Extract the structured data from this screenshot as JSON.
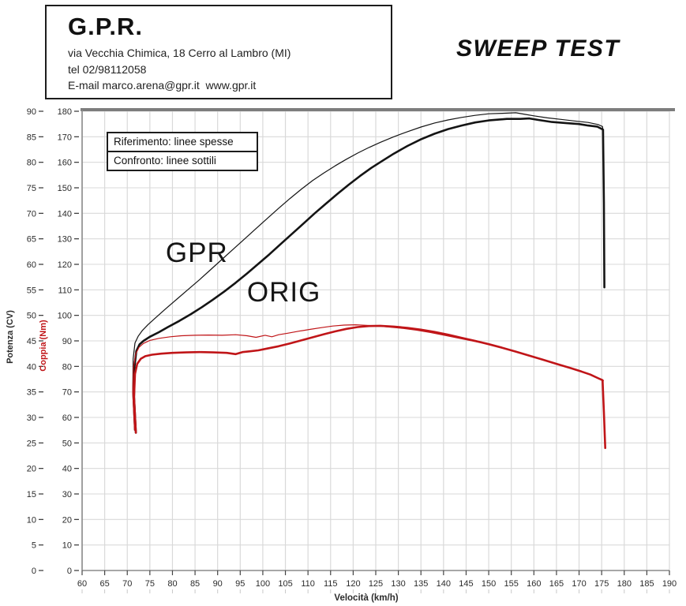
{
  "header": {
    "company": "G.P.R.",
    "address": "via Vecchia Chimica, 18 Cerro al Lambro (MI)",
    "phone": "tel 02/98112058",
    "email_line": "E-mail marco.arena@gpr.it  www.gpr.it"
  },
  "title": "SWEEP TEST",
  "legend": {
    "reference": "Riferimento: linee spesse",
    "comparison": "Confronto: linee sottili"
  },
  "colors": {
    "power_line": "#141414",
    "torque_line": "#c01518",
    "grid": "#d9d9d9",
    "frame_top": "#7d7d7d",
    "frame": "#8a8a8a",
    "tick_text": "#2b2b2b",
    "torque_axis_label": "#c01518"
  },
  "chart_data": {
    "type": "line",
    "title": "SWEEP TEST",
    "xlabel": "Velocità (km/h)",
    "grid": true,
    "legend_position": "top-left box",
    "x_axis": {
      "range": [
        60,
        190
      ],
      "step": 5,
      "ticks": [
        60,
        65,
        70,
        75,
        80,
        85,
        90,
        95,
        100,
        105,
        110,
        115,
        120,
        125,
        130,
        135,
        140,
        145,
        150,
        155,
        160,
        165,
        170,
        175,
        180,
        185,
        190
      ]
    },
    "y_axis_power": {
      "label": "Potenza (CV)",
      "range": [
        0,
        90
      ],
      "step": 5,
      "ticks": [
        0,
        5,
        10,
        15,
        20,
        25,
        30,
        35,
        40,
        45,
        50,
        55,
        60,
        65,
        70,
        75,
        80,
        85,
        90
      ]
    },
    "y_axis_torque": {
      "label": "Coppia (Nm)",
      "range": [
        0,
        180
      ],
      "step": 10,
      "ticks": [
        0,
        10,
        20,
        30,
        40,
        50,
        60,
        70,
        80,
        90,
        100,
        110,
        120,
        130,
        140,
        150,
        160,
        170,
        180
      ]
    },
    "annotations": [
      {
        "text": "GPR",
        "x_kmh": 78.5,
        "y_cv": 65.2
      },
      {
        "text": "ORIG",
        "x_kmh": 96.5,
        "y_cv": 57.5
      }
    ],
    "series": [
      {
        "name": "ORIG power - riferimento (thick)",
        "slug": "power-orig-thick",
        "axis": "power",
        "style": "thick",
        "color": "#141414",
        "x": [
          71.9,
          71.5,
          71.6,
          72.0,
          72.7,
          73.6,
          75,
          77,
          79,
          81.5,
          84,
          86.5,
          89,
          91.5,
          94,
          96.5,
          99,
          101.5,
          104,
          106.5,
          109,
          111.5,
          114,
          116.5,
          119,
          121.5,
          124,
          126.5,
          129,
          132,
          135,
          138,
          141,
          144,
          147,
          150,
          154,
          157,
          159,
          161,
          164,
          167,
          170,
          172,
          174,
          175.3,
          175.5,
          175.6
        ],
        "y": [
          27,
          34,
          40,
          43,
          44.3,
          45,
          45.8,
          46.7,
          47.7,
          48.9,
          50.2,
          51.6,
          53.1,
          54.7,
          56.4,
          58.2,
          60.1,
          62,
          64,
          66,
          68,
          70,
          71.9,
          73.8,
          75.6,
          77.3,
          78.9,
          80.3,
          81.7,
          83.2,
          84.5,
          85.6,
          86.5,
          87.2,
          87.8,
          88.2,
          88.5,
          88.5,
          88.6,
          88.3,
          87.9,
          87.7,
          87.5,
          87.2,
          87,
          86.4,
          72,
          55.5
        ]
      },
      {
        "name": "GPR power - confronto (thin)",
        "slug": "power-gpr-thin",
        "axis": "power",
        "style": "thin",
        "color": "#141414",
        "x": [
          71.6,
          71.2,
          71.3,
          71.7,
          72.4,
          73.3,
          74.6,
          76.5,
          78.5,
          81,
          83.5,
          86,
          88.5,
          91,
          93.5,
          96,
          98.5,
          101,
          103.5,
          106,
          108.5,
          111,
          113.5,
          116,
          118.5,
          121,
          123.5,
          126,
          129,
          132,
          135,
          138,
          141,
          144,
          147,
          150,
          153,
          156,
          158,
          160,
          163,
          166,
          169,
          172,
          174.2,
          175.2,
          175.4
        ],
        "y": [
          27.5,
          35,
          41.5,
          44.6,
          45.9,
          47,
          48.2,
          49.7,
          51.3,
          53.2,
          55.1,
          57,
          59,
          61,
          63,
          65,
          67,
          69,
          71,
          72.9,
          74.7,
          76.4,
          77.9,
          79.3,
          80.6,
          81.8,
          82.9,
          83.9,
          85,
          86,
          86.9,
          87.7,
          88.3,
          88.8,
          89.2,
          89.5,
          89.6,
          89.7,
          89.4,
          89.1,
          88.7,
          88.4,
          88.1,
          87.8,
          87.4,
          87,
          84.5
        ]
      },
      {
        "name": "ORIG torque - riferimento (thick)",
        "slug": "torque-orig-thick",
        "axis": "torque",
        "style": "thick",
        "color": "#c01518",
        "x": [
          71.9,
          71.5,
          71.7,
          72.2,
          73,
          74,
          75.5,
          77.5,
          80,
          83,
          86,
          89,
          92,
          94,
          95.5,
          97,
          99,
          101,
          103.5,
          106,
          108.5,
          111,
          113.5,
          116,
          118.5,
          121,
          123.5,
          126,
          129,
          132,
          135,
          138,
          141,
          144,
          147,
          150,
          153,
          156,
          159,
          162,
          165,
          168,
          170.5,
          172.5,
          174.3,
          175.2,
          175.5,
          175.8
        ],
        "y": [
          54,
          68,
          77,
          81,
          83,
          84,
          84.6,
          85,
          85.3,
          85.5,
          85.6,
          85.5,
          85.3,
          84.8,
          85.6,
          85.9,
          86.3,
          87,
          87.9,
          89,
          90.2,
          91.4,
          92.6,
          93.7,
          94.7,
          95.4,
          95.8,
          95.9,
          95.6,
          95.1,
          94.4,
          93.5,
          92.4,
          91.2,
          90,
          88.7,
          87.3,
          85.8,
          84.2,
          82.6,
          81,
          79.4,
          78,
          76.8,
          75.3,
          74.6,
          62,
          48
        ]
      },
      {
        "name": "GPR torque - confronto (thin)",
        "slug": "torque-gpr-thin",
        "axis": "torque",
        "style": "thin",
        "color": "#c01518",
        "x": [
          71.6,
          71.2,
          71.4,
          71.9,
          72.6,
          73.6,
          75,
          77,
          79.5,
          82,
          85,
          88,
          91,
          94,
          96.5,
          98.5,
          100.5,
          102,
          103.5,
          105.5,
          108,
          110.5,
          113,
          115.5,
          118,
          120.5,
          123,
          125.5,
          128,
          131,
          134,
          137,
          140,
          143,
          146,
          149,
          152,
          155,
          158,
          161,
          164,
          167,
          169.5,
          172,
          174,
          175.1,
          175.4
        ],
        "y": [
          55,
          70,
          80,
          85,
          87.5,
          89,
          90.2,
          91,
          91.6,
          92,
          92.2,
          92.3,
          92.2,
          92.4,
          92,
          91.4,
          92.2,
          91.6,
          92.4,
          93,
          93.8,
          94.5,
          95.2,
          95.8,
          96.2,
          96.3,
          96.1,
          95.8,
          95.4,
          94.9,
          94.2,
          93.3,
          92.3,
          91.2,
          90.1,
          89,
          87.8,
          86.4,
          84.8,
          83.2,
          81.6,
          80,
          78.6,
          77.2,
          75.6,
          74.8,
          74.4
        ]
      }
    ]
  }
}
